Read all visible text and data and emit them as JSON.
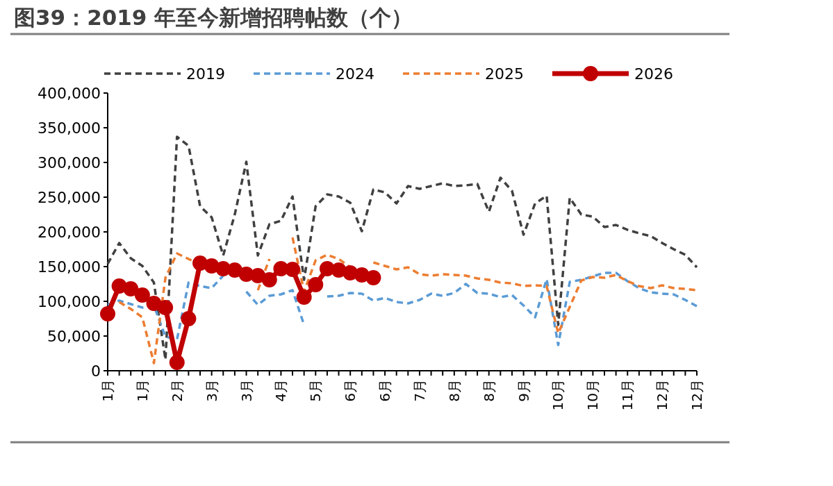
{
  "chart_data": {
    "type": "line",
    "title": "图39：2019 年至今新增招聘帖数（个）",
    "categories": [
      "1月",
      null,
      null,
      "1月",
      null,
      null,
      "2月",
      null,
      null,
      "3月",
      null,
      null,
      "3月",
      null,
      null,
      "4月",
      null,
      null,
      "5月",
      null,
      null,
      "6月",
      null,
      null,
      "6月",
      null,
      null,
      "7月",
      null,
      null,
      "8月",
      null,
      null,
      "8月",
      null,
      null,
      "9月",
      null,
      null,
      "10月",
      null,
      null,
      "10月",
      null,
      null,
      "11月",
      null,
      null,
      "12月",
      null,
      null,
      "12月"
    ],
    "ylim": [
      0,
      400000
    ],
    "yticks": [
      {
        "value": 0,
        "label": "0"
      },
      {
        "value": 50000,
        "label": "50,000"
      },
      {
        "value": 100000,
        "label": "100,000"
      },
      {
        "value": 150000,
        "label": "150,000"
      },
      {
        "value": 200000,
        "label": "200,000"
      },
      {
        "value": 250000,
        "label": "250,000"
      },
      {
        "value": 300000,
        "label": "300,000"
      },
      {
        "value": 350000,
        "label": "350,000"
      },
      {
        "value": 400000,
        "label": "400,000"
      }
    ],
    "grid": false,
    "legend": "top",
    "series": [
      {
        "name": "2019",
        "color": "#404040",
        "line_style": "dashed",
        "marker": "none",
        "values": [
          154000,
          184000,
          162000,
          151000,
          127000,
          16000,
          337000,
          324000,
          237000,
          221000,
          166000,
          225000,
          301000,
          166000,
          211000,
          216000,
          251000,
          131000,
          237000,
          254000,
          251000,
          242000,
          201000,
          261000,
          257000,
          241000,
          266000,
          262000,
          266000,
          270000,
          266000,
          267000,
          269000,
          229000,
          278000,
          259000,
          196000,
          241000,
          252000,
          66000,
          249000,
          225000,
          222000,
          207000,
          210000,
          203000,
          198000,
          194000,
          184000,
          175000,
          167000,
          149000
        ]
      },
      {
        "name": "2024",
        "color": "#5b9bd5",
        "line_style": "dashed",
        "marker": "none",
        "values": [
          95000,
          101000,
          96000,
          91000,
          94000,
          49000,
          45000,
          127000,
          122000,
          119000,
          137000,
          null,
          114000,
          95000,
          108000,
          110000,
          116000,
          66000,
          null,
          107000,
          108000,
          112000,
          111000,
          101000,
          105000,
          99000,
          97000,
          102000,
          111000,
          108000,
          112000,
          125000,
          112000,
          111000,
          106000,
          109000,
          94000,
          77000,
          132000,
          37000,
          128000,
          131000,
          136000,
          141000,
          141000,
          129000,
          119000,
          113000,
          111000,
          110000,
          102000,
          93000
        ]
      },
      {
        "name": "2025",
        "color": "#ed7d31",
        "line_style": "dashed",
        "marker": "none",
        "values": [
          null,
          99000,
          89000,
          77000,
          11000,
          134000,
          169000,
          161000,
          153000,
          null,
          null,
          null,
          null,
          116000,
          161000,
          null,
          192000,
          114000,
          159000,
          167000,
          161000,
          149000,
          null,
          156000,
          151000,
          146000,
          149000,
          139000,
          137000,
          139000,
          138000,
          137000,
          133000,
          131000,
          127000,
          126000,
          122000,
          123000,
          122000,
          54000,
          92000,
          130000,
          135000,
          134000,
          138000,
          129000,
          122000,
          119000,
          123000,
          119000,
          118000,
          116000
        ]
      },
      {
        "name": "2026",
        "color": "#c00000",
        "line_style": "solid",
        "marker": "circle",
        "values": [
          82000,
          122000,
          118000,
          109000,
          97000,
          91000,
          12000,
          75000,
          155000,
          151000,
          147000,
          145000,
          139000,
          137000,
          131000,
          147000,
          146000,
          106000,
          124000,
          147000,
          145000,
          141000,
          138000,
          134000,
          null,
          null,
          null,
          null,
          null,
          null,
          null,
          null,
          null,
          null,
          null,
          null,
          null,
          null,
          null,
          null,
          null,
          null,
          null,
          null,
          null,
          null,
          null,
          null,
          null,
          null,
          null,
          null
        ]
      }
    ]
  }
}
